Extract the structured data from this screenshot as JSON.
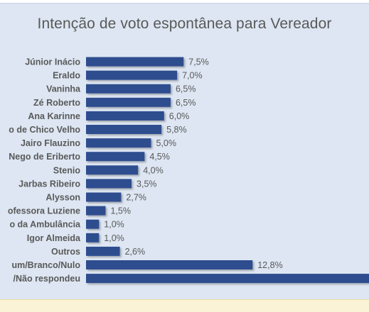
{
  "chart_data": {
    "type": "bar",
    "orientation": "horizontal",
    "title": "Intenção de voto espontânea para Vereador",
    "categories": [
      "Júnior Inácio",
      "Eraldo",
      "Vaninha",
      "Zé Roberto",
      "Ana Karinne",
      "o de Chico Velho",
      "Jairo Flauzino",
      "Nego de Eriberto",
      "Stenio",
      "Jarbas Ribeiro",
      "Alysson",
      "ofessora Luziene",
      "o da Ambulância",
      "Igor Almeida",
      "Outros",
      "um/Branco/Nulo",
      "/Não respondeu"
    ],
    "values": [
      7.5,
      7.0,
      6.5,
      6.5,
      6.0,
      5.8,
      5.0,
      4.5,
      4.0,
      3.5,
      2.7,
      1.5,
      1.0,
      1.0,
      2.6,
      12.8,
      null
    ],
    "value_labels": [
      "7,5%",
      "7,0%",
      "6,5%",
      "6,5%",
      "6,0%",
      "5,8%",
      "5,0%",
      "4,5%",
      "4,0%",
      "3,5%",
      "2,7%",
      "1,5%",
      "1,0%",
      "1,0%",
      "2,6%",
      "12,8%",
      ""
    ],
    "bar_color": "#2e4d8f",
    "label_color": "#595959",
    "panel_color": "#dde6f2"
  }
}
